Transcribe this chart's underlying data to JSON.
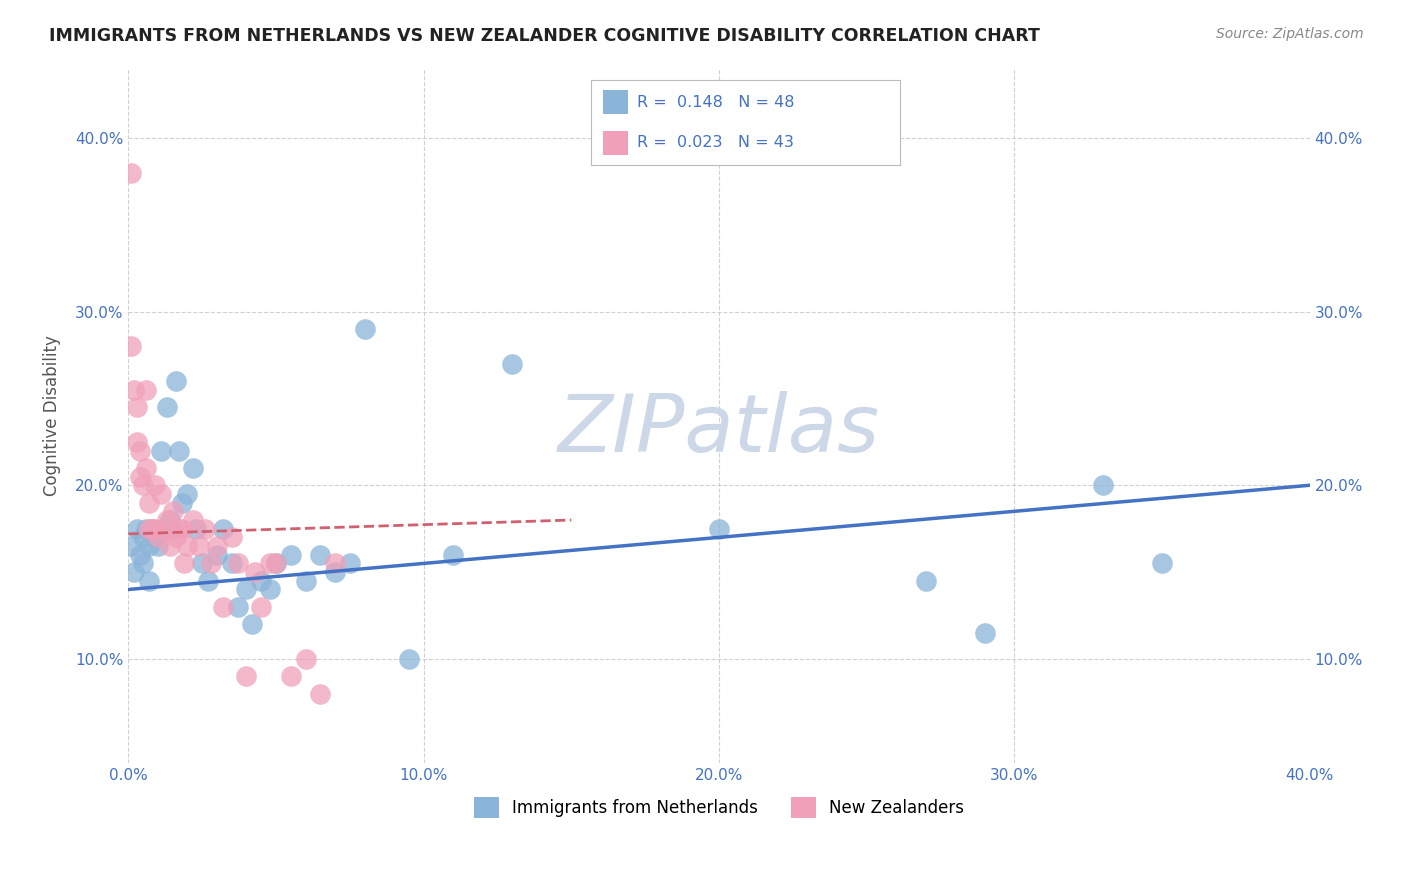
{
  "title": "IMMIGRANTS FROM NETHERLANDS VS NEW ZEALANDER COGNITIVE DISABILITY CORRELATION CHART",
  "source": "Source: ZipAtlas.com",
  "ylabel": "Cognitive Disability",
  "xlim": [
    0.0,
    0.4
  ],
  "ylim": [
    0.04,
    0.44
  ],
  "grid_color": "#cccccc",
  "background_color": "#ffffff",
  "blue_color": "#8ab4d8",
  "pink_color": "#f0a0b8",
  "blue_line_color": "#4472c4",
  "pink_line_color": "#d06070",
  "watermark_color": "#ccd8e8",
  "tick_color": "#4472c4",
  "blue_scatter_x": [
    0.001,
    0.002,
    0.003,
    0.004,
    0.005,
    0.005,
    0.006,
    0.007,
    0.007,
    0.008,
    0.009,
    0.01,
    0.011,
    0.012,
    0.013,
    0.014,
    0.015,
    0.016,
    0.017,
    0.018,
    0.02,
    0.022,
    0.023,
    0.025,
    0.027,
    0.03,
    0.032,
    0.035,
    0.037,
    0.04,
    0.042,
    0.045,
    0.048,
    0.05,
    0.055,
    0.06,
    0.065,
    0.07,
    0.075,
    0.08,
    0.095,
    0.11,
    0.13,
    0.2,
    0.27,
    0.29,
    0.33,
    0.35
  ],
  "blue_scatter_y": [
    0.165,
    0.15,
    0.175,
    0.16,
    0.17,
    0.155,
    0.175,
    0.165,
    0.145,
    0.175,
    0.17,
    0.165,
    0.22,
    0.175,
    0.245,
    0.18,
    0.175,
    0.26,
    0.22,
    0.19,
    0.195,
    0.21,
    0.175,
    0.155,
    0.145,
    0.16,
    0.175,
    0.155,
    0.13,
    0.14,
    0.12,
    0.145,
    0.14,
    0.155,
    0.16,
    0.145,
    0.16,
    0.15,
    0.155,
    0.29,
    0.1,
    0.16,
    0.27,
    0.175,
    0.145,
    0.115,
    0.2,
    0.155
  ],
  "pink_scatter_x": [
    0.001,
    0.001,
    0.002,
    0.003,
    0.003,
    0.004,
    0.004,
    0.005,
    0.006,
    0.006,
    0.007,
    0.007,
    0.008,
    0.009,
    0.009,
    0.01,
    0.011,
    0.012,
    0.013,
    0.014,
    0.015,
    0.016,
    0.017,
    0.018,
    0.019,
    0.02,
    0.022,
    0.024,
    0.026,
    0.028,
    0.03,
    0.032,
    0.035,
    0.037,
    0.04,
    0.043,
    0.045,
    0.048,
    0.05,
    0.055,
    0.06,
    0.065,
    0.07
  ],
  "pink_scatter_y": [
    0.38,
    0.28,
    0.255,
    0.245,
    0.225,
    0.22,
    0.205,
    0.2,
    0.255,
    0.21,
    0.19,
    0.175,
    0.175,
    0.2,
    0.175,
    0.17,
    0.195,
    0.175,
    0.18,
    0.165,
    0.185,
    0.17,
    0.175,
    0.175,
    0.155,
    0.165,
    0.18,
    0.165,
    0.175,
    0.155,
    0.165,
    0.13,
    0.17,
    0.155,
    0.09,
    0.15,
    0.13,
    0.155,
    0.155,
    0.09,
    0.1,
    0.08,
    0.155
  ],
  "blue_line_x": [
    0.0,
    0.4
  ],
  "blue_line_y": [
    0.14,
    0.2
  ],
  "pink_line_x": [
    0.0,
    0.15
  ],
  "pink_line_y": [
    0.172,
    0.18
  ],
  "pink_line_style": "dashed",
  "legend_label_blue": "Immigrants from Netherlands",
  "legend_label_pink": "New Zealanders",
  "watermark": "ZIPatlas"
}
